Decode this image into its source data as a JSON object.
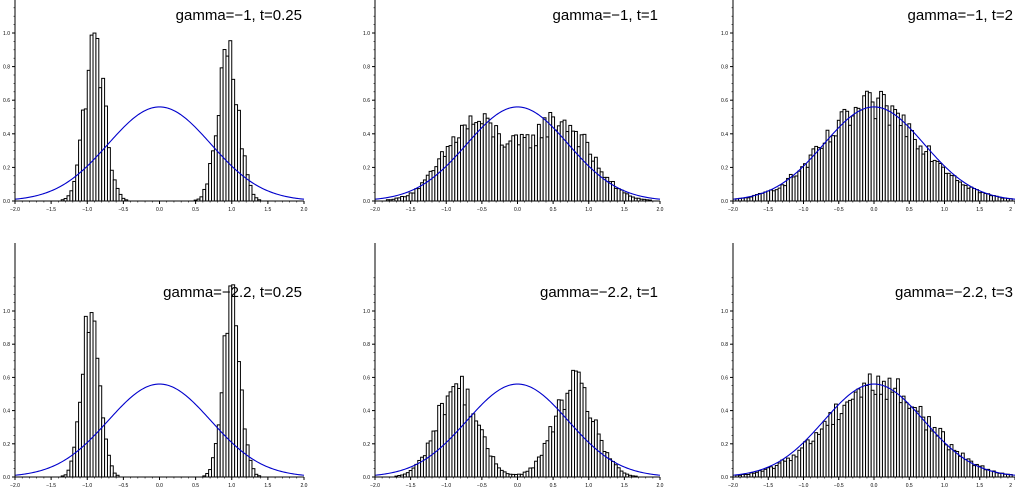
{
  "chart_data": [
    {
      "type": "bar",
      "title": "gamma=−1, t=0.25",
      "xlim": [
        -2.0,
        2.0
      ],
      "ylim": [
        0.0,
        1.2
      ],
      "xticks": [
        "−2.0",
        "−1.5",
        "−1.0",
        "−0.5",
        "0.0",
        "0.5",
        "1.0",
        "1.5",
        "2.0"
      ],
      "yticks": [
        "0.0",
        "0.2",
        "0.4",
        "0.6",
        "0.8",
        "1.0"
      ],
      "bin_width": 0.04,
      "histogram": {
        "shape": "bimodal",
        "peaks": [
          -0.9,
          0.95
        ],
        "peak_heights": [
          0.94,
          0.94
        ],
        "spread": 0.14,
        "base": 0.0,
        "min_x": -1.5,
        "max_x": 1.5
      },
      "curve": {
        "name": "",
        "type": "gaussian",
        "mean": 0.0,
        "peak": 0.56,
        "sd": 0.71
      },
      "color_curve": "#0000cc"
    },
    {
      "type": "bar",
      "title": "gamma=−1, t=1",
      "xlim": [
        -2.0,
        2.0
      ],
      "ylim": [
        0.0,
        1.2
      ],
      "xticks": [
        "−2.0",
        "−1.5",
        "−1.0",
        "−0.5",
        "0.0",
        "0.5",
        "1.0",
        "1.5",
        "2.0"
      ],
      "yticks": [
        "0.0",
        "0.2",
        "0.4",
        "0.6",
        "0.8",
        "1.0"
      ],
      "bin_width": 0.04,
      "histogram": {
        "shape": "bimodal",
        "peaks": [
          -0.6,
          0.6
        ],
        "peak_heights": [
          0.46,
          0.47
        ],
        "spread": 0.42,
        "base": 0.0,
        "min_x": -1.85,
        "max_x": 1.9
      },
      "curve": {
        "name": "",
        "type": "gaussian",
        "mean": 0.0,
        "peak": 0.56,
        "sd": 0.71
      },
      "color_curve": "#0000cc"
    },
    {
      "type": "bar",
      "title": "gamma=−1, t=2",
      "xlim": [
        -2.0,
        2.0
      ],
      "ylim": [
        0.0,
        1.2
      ],
      "xticks": [
        "−2.0",
        "−1.5",
        "−1.0",
        "−0.5",
        "0.0",
        "0.5",
        "1.0",
        "1.5",
        "2"
      ],
      "yticks": [
        "0.0",
        "0.2",
        "0.4",
        "0.6",
        "0.8",
        "1.0"
      ],
      "bin_width": 0.04,
      "histogram": {
        "shape": "unimodal",
        "peaks": [
          0.0
        ],
        "peak_heights": [
          0.56
        ],
        "spread": 0.7,
        "base": 0.0,
        "min_x": -1.95,
        "max_x": 1.95
      },
      "curve": {
        "name": "",
        "type": "gaussian",
        "mean": 0.0,
        "peak": 0.56,
        "sd": 0.71
      },
      "color_curve": "#0000cc"
    },
    {
      "type": "bar",
      "title": "gamma=−2.2, t=0.25",
      "xlim": [
        -2.0,
        2.0
      ],
      "ylim": [
        0.0,
        1.2
      ],
      "xticks": [
        "−2.0",
        "−1.5",
        "−1.0",
        "−0.5",
        "0.0",
        "0.5",
        "1.0",
        "1.5",
        "2.0"
      ],
      "yticks": [
        "0.0",
        "0.2",
        "0.4",
        "0.6",
        "0.8",
        "1.0"
      ],
      "bin_width": 0.04,
      "histogram": {
        "shape": "bimodal",
        "peaks": [
          -0.95,
          1.0
        ],
        "peak_heights": [
          1.06,
          1.04
        ],
        "spread": 0.12,
        "base": 0.0,
        "min_x": -1.45,
        "max_x": 1.45
      },
      "curve": {
        "name": "",
        "type": "gaussian",
        "mean": 0.0,
        "peak": 0.56,
        "sd": 0.71
      },
      "color_curve": "#0000cc"
    },
    {
      "type": "bar",
      "title": "gamma=−2.2, t=1",
      "xlim": [
        -2.0,
        2.0
      ],
      "ylim": [
        0.0,
        1.2
      ],
      "xticks": [
        "−2.0",
        "−1.5",
        "−1.0",
        "−0.5",
        "0.0",
        "0.5",
        "1.0",
        "1.5",
        "2.0"
      ],
      "yticks": [
        "0.0",
        "0.2",
        "0.4",
        "0.6",
        "0.8",
        "1.0"
      ],
      "bin_width": 0.04,
      "histogram": {
        "shape": "bimodal",
        "peaks": [
          -0.85,
          0.8
        ],
        "peak_heights": [
          0.55,
          0.55
        ],
        "spread": 0.28,
        "base": 0.0,
        "min_x": -1.8,
        "max_x": 1.8
      },
      "curve": {
        "name": "",
        "type": "gaussian",
        "mean": 0.0,
        "peak": 0.56,
        "sd": 0.71
      },
      "color_curve": "#0000cc"
    },
    {
      "type": "bar",
      "title": "gamma=−2.2, t=3",
      "xlim": [
        -2.0,
        2.0
      ],
      "ylim": [
        0.0,
        1.2
      ],
      "xticks": [
        "−2.0",
        "−1.5",
        "−1.0",
        "−0.5",
        "0.0",
        "0.5",
        "1.0",
        "1.5",
        "2"
      ],
      "yticks": [
        "0.0",
        "0.2",
        "0.4",
        "0.6",
        "0.8",
        "1.0"
      ],
      "bin_width": 0.04,
      "histogram": {
        "shape": "unimodal",
        "peaks": [
          0.05
        ],
        "peak_heights": [
          0.56
        ],
        "spread": 0.7,
        "base": 0.0,
        "min_x": -1.95,
        "max_x": 1.95
      },
      "curve": {
        "name": "",
        "type": "gaussian",
        "mean": 0.0,
        "peak": 0.56,
        "sd": 0.71
      },
      "color_curve": "#0000cc"
    }
  ]
}
